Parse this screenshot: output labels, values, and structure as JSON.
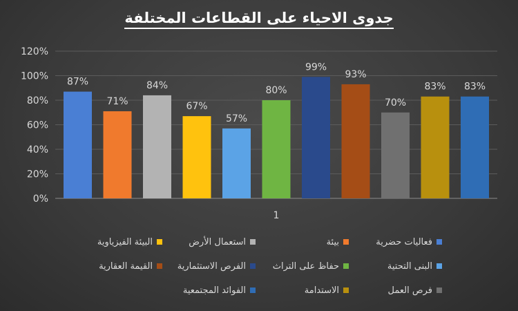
{
  "chart_data": {
    "type": "bar",
    "title": "جدوى الاحياء على القطاعات المختلفة",
    "categories": [
      "1"
    ],
    "y_ticks": [
      "0%",
      "20%",
      "40%",
      "60%",
      "80%",
      "100%",
      "120%"
    ],
    "ylim": [
      0,
      120
    ],
    "grid": true,
    "legend_position": "bottom",
    "series": [
      {
        "name": "فعاليات حضرية",
        "value": 87,
        "label": "87%",
        "color": "#4a7fd4"
      },
      {
        "name": "بيئة",
        "value": 71,
        "label": "71%",
        "color": "#f07a2d"
      },
      {
        "name": "استعمال الأرض",
        "value": 84,
        "label": "84%",
        "color": "#b3b3b3"
      },
      {
        "name": "البيئة الفيزياوية",
        "value": 67,
        "label": "67%",
        "color": "#ffc20e"
      },
      {
        "name": "البنى التحتية",
        "value": 57,
        "label": "57%",
        "color": "#5ba3e6"
      },
      {
        "name": "حفاظ على التراث",
        "value": 80,
        "label": "80%",
        "color": "#6fb543"
      },
      {
        "name": "الفرص الاستثمارية",
        "value": 99,
        "label": "99%",
        "color": "#2a4a8c"
      },
      {
        "name": "القيمة العقارية",
        "value": 93,
        "label": "93%",
        "color": "#a54d16"
      },
      {
        "name": "فرص العمل",
        "value": 70,
        "label": "70%",
        "color": "#707070"
      },
      {
        "name": "الاستدامة",
        "value": 83,
        "label": "83%",
        "color": "#b8900e"
      },
      {
        "name": "الفوائد المجتمعية",
        "value": 83,
        "label": "83%",
        "color": "#2f6db5"
      }
    ]
  }
}
